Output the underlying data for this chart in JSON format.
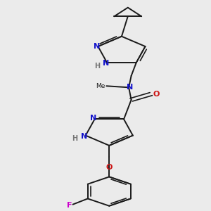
{
  "background_color": "#ebebeb",
  "bond_color": "#1a1a1a",
  "nitrogen_color": "#1414cc",
  "oxygen_color": "#cc1414",
  "fluorine_color": "#cc00cc",
  "hydrogen_color": "#777777",
  "figsize": [
    3.0,
    3.0
  ],
  "dpi": 100,
  "xlim": [
    60,
    230
  ],
  "ylim": [
    295,
    5
  ]
}
